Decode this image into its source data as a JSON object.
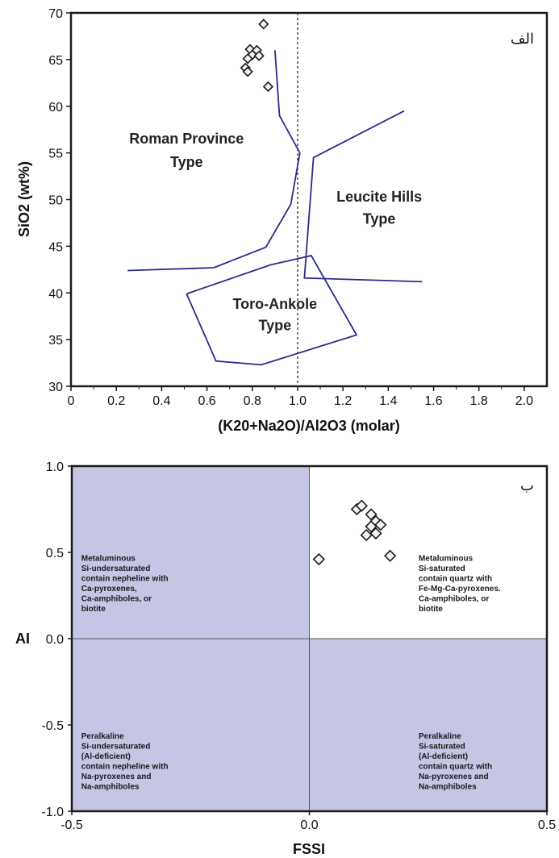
{
  "chart_data": [
    {
      "type": "scatter",
      "panel_label": "الف",
      "xlabel": "(K20+Na2O)/Al2O3  (molar)",
      "ylabel": "SiO2 (wt%)",
      "xlim": [
        0,
        2.1
      ],
      "ylim": [
        30,
        70
      ],
      "x_ticks": [
        "0",
        "0.2",
        "0.4",
        "0.6",
        "0.8",
        "1.0",
        "1.2",
        "1.4",
        "1.6",
        "1.8",
        "2.0"
      ],
      "x_tick_values": [
        0,
        0.2,
        0.4,
        0.6,
        0.8,
        1.0,
        1.2,
        1.4,
        1.6,
        1.8,
        2.0
      ],
      "y_ticks": [
        "30",
        "35",
        "40",
        "45",
        "50",
        "55",
        "60",
        "65",
        "70"
      ],
      "y_tick_values": [
        30,
        35,
        40,
        45,
        50,
        55,
        60,
        65,
        70
      ],
      "reference_line_x": 1.0,
      "points": [
        {
          "x": 0.85,
          "y": 68.8
        },
        {
          "x": 0.79,
          "y": 66.1
        },
        {
          "x": 0.82,
          "y": 66.0
        },
        {
          "x": 0.8,
          "y": 65.5
        },
        {
          "x": 0.83,
          "y": 65.4
        },
        {
          "x": 0.78,
          "y": 65.1
        },
        {
          "x": 0.77,
          "y": 64.1
        },
        {
          "x": 0.78,
          "y": 63.7
        },
        {
          "x": 0.87,
          "y": 62.1
        }
      ],
      "region_lines": [
        [
          [
            0.25,
            42.4
          ],
          [
            0.63,
            42.7
          ],
          [
            0.86,
            44.9
          ],
          [
            0.97,
            49.5
          ],
          [
            1.01,
            55.0
          ],
          [
            0.92,
            59.0
          ],
          [
            0.9,
            66.0
          ]
        ],
        [
          [
            1.47,
            59.5
          ],
          [
            1.07,
            54.5
          ],
          [
            1.03,
            41.6
          ],
          [
            1.55,
            41.2
          ]
        ]
      ],
      "region_polygon": [
        [
          0.51,
          39.9
        ],
        [
          0.64,
          32.7
        ],
        [
          0.84,
          32.3
        ],
        [
          1.26,
          35.5
        ],
        [
          1.06,
          44.0
        ],
        [
          0.88,
          43.0
        ],
        [
          0.51,
          39.9
        ]
      ],
      "region_labels": [
        {
          "text": "Roman Province",
          "x": 0.51,
          "y": 56.0
        },
        {
          "text": "Type",
          "x": 0.51,
          "y": 53.5
        },
        {
          "text": "Leucite Hills",
          "x": 1.36,
          "y": 49.8
        },
        {
          "text": "Type",
          "x": 1.36,
          "y": 47.4
        },
        {
          "text": "Toro-Ankole",
          "x": 0.9,
          "y": 38.3
        },
        {
          "text": "Type",
          "x": 0.9,
          "y": 36.0
        }
      ],
      "colors": {
        "lines": "#2a2a8c",
        "points_fill": "#f2f2f2",
        "points_stroke": "#1a1a1a"
      }
    },
    {
      "type": "scatter",
      "panel_label": "ب",
      "xlabel": "FSSI",
      "ylabel": "AI",
      "xlim": [
        -0.5,
        0.5
      ],
      "ylim": [
        -1.0,
        1.0
      ],
      "x_ticks": [
        "-0.5",
        "0.0",
        "0.5"
      ],
      "x_tick_values": [
        -0.5,
        0.0,
        0.5
      ],
      "y_ticks": [
        "-1.0",
        "-0.5",
        "0.0",
        "0.5",
        "1.0"
      ],
      "y_tick_values": [
        -1.0,
        -0.5,
        0.0,
        0.5,
        1.0
      ],
      "points": [
        {
          "x": 0.02,
          "y": 0.46
        },
        {
          "x": 0.1,
          "y": 0.75
        },
        {
          "x": 0.11,
          "y": 0.77
        },
        {
          "x": 0.13,
          "y": 0.72
        },
        {
          "x": 0.14,
          "y": 0.68
        },
        {
          "x": 0.13,
          "y": 0.65
        },
        {
          "x": 0.15,
          "y": 0.66
        },
        {
          "x": 0.12,
          "y": 0.6
        },
        {
          "x": 0.14,
          "y": 0.61
        },
        {
          "x": 0.17,
          "y": 0.48
        }
      ],
      "shaded_quadrants": [
        "top-left",
        "bottom-left",
        "bottom-right"
      ],
      "quadrant_labels": [
        {
          "lines": [
            "Metaluminous",
            "Si-undersaturated",
            "contain nepheline with",
            "Ca-pyroxenes,",
            "Ca-amphiboles, or",
            "biotite"
          ],
          "x": -0.48,
          "y": 0.45
        },
        {
          "lines": [
            "Metaluminous",
            "Si-saturated",
            "contain quartz with",
            "Fe-Mg-Ca-pyroxenes.",
            "Ca-amphiboles, or",
            "biotite"
          ],
          "x": 0.23,
          "y": 0.45
        },
        {
          "lines": [
            "Peralkaline",
            "Si-undersaturated",
            "(Al-deficient)",
            "contain nepheline with",
            "Na-pyroxenes and",
            "Na-amphiboles"
          ],
          "x": -0.48,
          "y": -0.58
        },
        {
          "lines": [
            "Peralkaline",
            "Si-saturated",
            "(Al-deficient)",
            "contain quartz with",
            "Na-pyroxenes and",
            "Na-amphiboles"
          ],
          "x": 0.23,
          "y": -0.58
        }
      ],
      "colors": {
        "shade": "#c4c6e4",
        "points_fill": "#f2f2f2",
        "points_stroke": "#1a1a1a",
        "frame": "#1a1a1a"
      }
    }
  ]
}
